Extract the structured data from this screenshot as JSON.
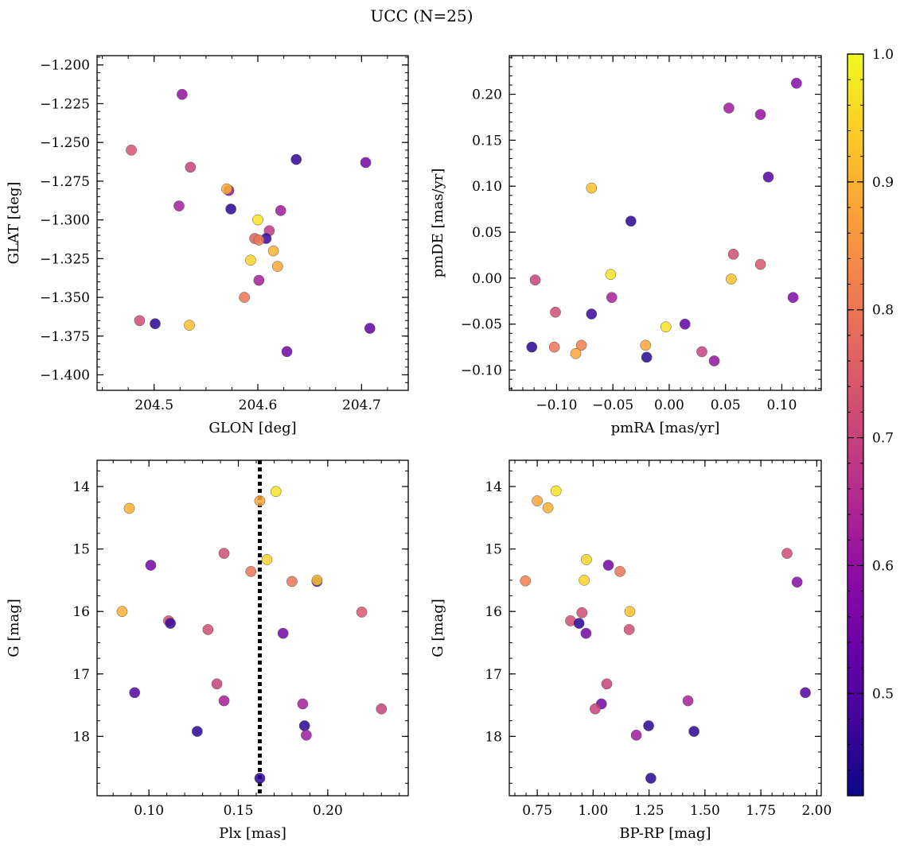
{
  "title": "UCC (N=25)",
  "colorbar": {
    "range": [
      0.42,
      1.0
    ],
    "ticks": [
      0.5,
      0.6,
      0.7,
      0.8,
      0.9,
      1.0
    ],
    "tick_labels": [
      "0.5",
      "0.6",
      "0.7",
      "0.8",
      "0.9",
      "1.0"
    ],
    "colormap": "plasma"
  },
  "chart_data": [
    {
      "type": "scatter",
      "xlabel": "GLON [deg]",
      "ylabel": "GLAT [deg]",
      "xlim": [
        204.445,
        204.745
      ],
      "ylim": [
        -1.41,
        -1.194
      ],
      "xticks": [
        204.5,
        204.6,
        204.7
      ],
      "xtick_labels": [
        "204.5",
        "204.6",
        "204.7"
      ],
      "xminor": 0.025,
      "yticks": [
        -1.4,
        -1.375,
        -1.35,
        -1.325,
        -1.3,
        -1.275,
        -1.25,
        -1.225,
        -1.2
      ],
      "ytick_labels": [
        "−1.400",
        "−1.375",
        "−1.350",
        "−1.325",
        "−1.300",
        "−1.275",
        "−1.250",
        "−1.225",
        "−1.200"
      ],
      "yminor": 0.005,
      "invert_y": false,
      "points": [
        {
          "x": 204.478,
          "y": -1.255,
          "c": 0.73
        },
        {
          "x": 204.527,
          "y": -1.219,
          "c": 0.6
        },
        {
          "x": 204.535,
          "y": -1.266,
          "c": 0.7
        },
        {
          "x": 204.524,
          "y": -1.291,
          "c": 0.63
        },
        {
          "x": 204.572,
          "y": -1.281,
          "c": 0.6
        },
        {
          "x": 204.57,
          "y": -1.28,
          "c": 0.9
        },
        {
          "x": 204.574,
          "y": -1.293,
          "c": 0.45
        },
        {
          "x": 204.6,
          "y": -1.3,
          "c": 0.97
        },
        {
          "x": 204.637,
          "y": -1.261,
          "c": 0.46
        },
        {
          "x": 204.704,
          "y": -1.263,
          "c": 0.55
        },
        {
          "x": 204.622,
          "y": -1.294,
          "c": 0.62
        },
        {
          "x": 204.611,
          "y": -1.307,
          "c": 0.68
        },
        {
          "x": 204.597,
          "y": -1.312,
          "c": 0.76
        },
        {
          "x": 204.608,
          "y": -1.312,
          "c": 0.47
        },
        {
          "x": 204.601,
          "y": -1.313,
          "c": 0.8
        },
        {
          "x": 204.615,
          "y": -1.32,
          "c": 0.9
        },
        {
          "x": 204.593,
          "y": -1.326,
          "c": 0.95
        },
        {
          "x": 204.619,
          "y": -1.33,
          "c": 0.88
        },
        {
          "x": 204.601,
          "y": -1.339,
          "c": 0.63
        },
        {
          "x": 204.587,
          "y": -1.35,
          "c": 0.8
        },
        {
          "x": 204.486,
          "y": -1.365,
          "c": 0.72
        },
        {
          "x": 204.501,
          "y": -1.367,
          "c": 0.45
        },
        {
          "x": 204.534,
          "y": -1.368,
          "c": 0.92
        },
        {
          "x": 204.708,
          "y": -1.37,
          "c": 0.52
        },
        {
          "x": 204.628,
          "y": -1.385,
          "c": 0.55
        }
      ]
    },
    {
      "type": "scatter",
      "xlabel": "pmRA [mas/yr]",
      "ylabel": "pmDE [mas/yr]",
      "xlim": [
        -0.142,
        0.135
      ],
      "ylim": [
        -0.122,
        0.242
      ],
      "xticks": [
        -0.1,
        -0.05,
        0.0,
        0.05,
        0.1
      ],
      "xtick_labels": [
        "−0.10",
        "−0.05",
        "0.00",
        "0.05",
        "0.10"
      ],
      "xminor": 0.01,
      "yticks": [
        -0.1,
        -0.05,
        0.0,
        0.05,
        0.1,
        0.15,
        0.2
      ],
      "ytick_labels": [
        "−0.10",
        "−0.05",
        "0.00",
        "0.05",
        "0.10",
        "0.15",
        "0.20"
      ],
      "yminor": 0.01,
      "invert_y": false,
      "points": [
        {
          "x": 0.113,
          "y": 0.212,
          "c": 0.58
        },
        {
          "x": 0.053,
          "y": 0.185,
          "c": 0.62
        },
        {
          "x": 0.081,
          "y": 0.178,
          "c": 0.6
        },
        {
          "x": 0.088,
          "y": 0.11,
          "c": 0.5
        },
        {
          "x": -0.069,
          "y": 0.098,
          "c": 0.92
        },
        {
          "x": -0.034,
          "y": 0.062,
          "c": 0.45
        },
        {
          "x": 0.057,
          "y": 0.026,
          "c": 0.72
        },
        {
          "x": 0.081,
          "y": 0.015,
          "c": 0.74
        },
        {
          "x": -0.052,
          "y": 0.004,
          "c": 0.97
        },
        {
          "x": -0.119,
          "y": -0.002,
          "c": 0.7
        },
        {
          "x": 0.055,
          "y": -0.001,
          "c": 0.92
        },
        {
          "x": -0.051,
          "y": -0.021,
          "c": 0.63
        },
        {
          "x": 0.11,
          "y": -0.021,
          "c": 0.57
        },
        {
          "x": -0.101,
          "y": -0.037,
          "c": 0.72
        },
        {
          "x": -0.069,
          "y": -0.039,
          "c": 0.47
        },
        {
          "x": 0.014,
          "y": -0.05,
          "c": 0.52
        },
        {
          "x": -0.003,
          "y": -0.053,
          "c": 0.97
        },
        {
          "x": -0.122,
          "y": -0.075,
          "c": 0.45
        },
        {
          "x": -0.102,
          "y": -0.075,
          "c": 0.8
        },
        {
          "x": -0.078,
          "y": -0.073,
          "c": 0.82
        },
        {
          "x": -0.021,
          "y": -0.073,
          "c": 0.88
        },
        {
          "x": -0.083,
          "y": -0.082,
          "c": 0.88
        },
        {
          "x": 0.029,
          "y": -0.08,
          "c": 0.7
        },
        {
          "x": -0.02,
          "y": -0.086,
          "c": 0.45
        },
        {
          "x": 0.04,
          "y": -0.09,
          "c": 0.6
        }
      ]
    },
    {
      "type": "scatter",
      "xlabel": "Plx [mas]",
      "ylabel": "G [mag]",
      "xlim": [
        0.071,
        0.245
      ],
      "ylim": [
        13.58,
        18.95
      ],
      "xticks": [
        0.1,
        0.15,
        0.2
      ],
      "xtick_labels": [
        "0.10",
        "0.15",
        "0.20"
      ],
      "xminor": 0.01,
      "yticks": [
        14,
        15,
        16,
        17,
        18
      ],
      "ytick_labels": [
        "14",
        "15",
        "16",
        "17",
        "18"
      ],
      "yminor": 0.25,
      "invert_y": true,
      "vline": 0.162,
      "points": [
        {
          "x": 0.089,
          "y": 14.35,
          "c": 0.9
        },
        {
          "x": 0.162,
          "y": 14.23,
          "c": 0.88
        },
        {
          "x": 0.171,
          "y": 14.08,
          "c": 0.97
        },
        {
          "x": 0.142,
          "y": 15.07,
          "c": 0.72
        },
        {
          "x": 0.101,
          "y": 15.26,
          "c": 0.55
        },
        {
          "x": 0.157,
          "y": 15.36,
          "c": 0.8
        },
        {
          "x": 0.166,
          "y": 15.17,
          "c": 0.95
        },
        {
          "x": 0.18,
          "y": 15.52,
          "c": 0.8
        },
        {
          "x": 0.194,
          "y": 15.52,
          "c": 0.5
        },
        {
          "x": 0.194,
          "y": 15.5,
          "c": 0.92
        },
        {
          "x": 0.085,
          "y": 16.0,
          "c": 0.9
        },
        {
          "x": 0.111,
          "y": 16.15,
          "c": 0.72
        },
        {
          "x": 0.112,
          "y": 16.19,
          "c": 0.47
        },
        {
          "x": 0.133,
          "y": 16.29,
          "c": 0.72
        },
        {
          "x": 0.175,
          "y": 16.35,
          "c": 0.55
        },
        {
          "x": 0.219,
          "y": 16.01,
          "c": 0.74
        },
        {
          "x": 0.138,
          "y": 17.16,
          "c": 0.7
        },
        {
          "x": 0.092,
          "y": 17.3,
          "c": 0.5
        },
        {
          "x": 0.142,
          "y": 17.43,
          "c": 0.63
        },
        {
          "x": 0.186,
          "y": 17.48,
          "c": 0.63
        },
        {
          "x": 0.23,
          "y": 17.56,
          "c": 0.7
        },
        {
          "x": 0.127,
          "y": 17.92,
          "c": 0.45
        },
        {
          "x": 0.187,
          "y": 17.83,
          "c": 0.45
        },
        {
          "x": 0.188,
          "y": 17.98,
          "c": 0.62
        },
        {
          "x": 0.162,
          "y": 18.67,
          "c": 0.45
        }
      ]
    },
    {
      "type": "scatter",
      "xlabel": "BP-RP [mag]",
      "ylabel": "G [mag]",
      "xlim": [
        0.625,
        2.02
      ],
      "ylim": [
        13.58,
        18.95
      ],
      "xticks": [
        0.75,
        1.0,
        1.25,
        1.5,
        1.75,
        2.0
      ],
      "xtick_labels": [
        "0.75",
        "1.00",
        "1.25",
        "1.50",
        "1.75",
        "2.00"
      ],
      "xminor": 0.05,
      "yticks": [
        14,
        15,
        16,
        17,
        18
      ],
      "ytick_labels": [
        "14",
        "15",
        "16",
        "17",
        "18"
      ],
      "yminor": 0.25,
      "invert_y": true,
      "points": [
        {
          "x": 0.75,
          "y": 14.23,
          "c": 0.88
        },
        {
          "x": 0.798,
          "y": 14.34,
          "c": 0.9
        },
        {
          "x": 0.834,
          "y": 14.07,
          "c": 0.97
        },
        {
          "x": 0.697,
          "y": 15.51,
          "c": 0.82
        },
        {
          "x": 0.97,
          "y": 15.17,
          "c": 0.95
        },
        {
          "x": 0.96,
          "y": 15.5,
          "c": 0.95
        },
        {
          "x": 1.068,
          "y": 15.26,
          "c": 0.55
        },
        {
          "x": 1.12,
          "y": 15.36,
          "c": 0.8
        },
        {
          "x": 1.867,
          "y": 15.07,
          "c": 0.72
        },
        {
          "x": 1.912,
          "y": 15.53,
          "c": 0.58
        },
        {
          "x": 0.899,
          "y": 16.15,
          "c": 0.72
        },
        {
          "x": 0.95,
          "y": 16.02,
          "c": 0.72
        },
        {
          "x": 0.937,
          "y": 16.19,
          "c": 0.45
        },
        {
          "x": 0.968,
          "y": 16.35,
          "c": 0.55
        },
        {
          "x": 1.164,
          "y": 16.0,
          "c": 0.92
        },
        {
          "x": 1.161,
          "y": 16.29,
          "c": 0.72
        },
        {
          "x": 1.061,
          "y": 17.16,
          "c": 0.7
        },
        {
          "x": 1.949,
          "y": 17.3,
          "c": 0.5
        },
        {
          "x": 1.424,
          "y": 17.43,
          "c": 0.63
        },
        {
          "x": 1.037,
          "y": 17.48,
          "c": 0.55
        },
        {
          "x": 1.009,
          "y": 17.56,
          "c": 0.7
        },
        {
          "x": 1.248,
          "y": 17.83,
          "c": 0.45
        },
        {
          "x": 1.451,
          "y": 17.92,
          "c": 0.45
        },
        {
          "x": 1.193,
          "y": 17.98,
          "c": 0.62
        },
        {
          "x": 1.258,
          "y": 18.67,
          "c": 0.45
        }
      ]
    }
  ]
}
